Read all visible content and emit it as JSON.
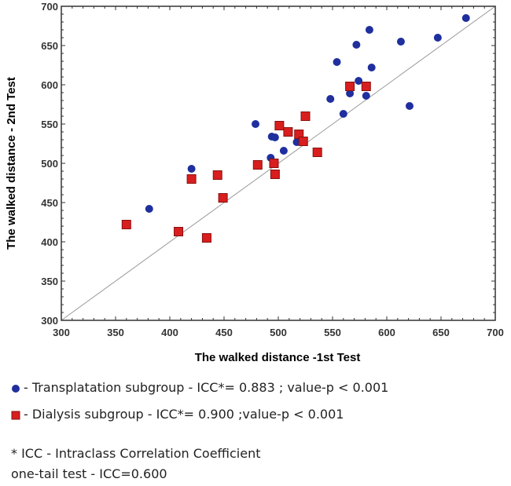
{
  "chart_data": {
    "type": "scatter",
    "xlabel": "The walked distance -1st Test",
    "ylabel": "The walked distance - 2nd Test",
    "xlim": [
      300,
      700
    ],
    "ylim": [
      300,
      700
    ],
    "xticks": [
      300,
      350,
      400,
      450,
      500,
      550,
      600,
      650,
      700
    ],
    "yticks": [
      300,
      350,
      400,
      450,
      500,
      550,
      600,
      650,
      700
    ],
    "reference_line": "y = x",
    "grid": false,
    "series": [
      {
        "name": "Transplatation subgroup",
        "marker": "circle",
        "color": "#1f2f9e",
        "points": [
          [
            673,
            685
          ],
          [
            584,
            670
          ],
          [
            572,
            651
          ],
          [
            613,
            655
          ],
          [
            647,
            660
          ],
          [
            554,
            629
          ],
          [
            586,
            622
          ],
          [
            574,
            605
          ],
          [
            566,
            589
          ],
          [
            548,
            582
          ],
          [
            581,
            586
          ],
          [
            621,
            573
          ],
          [
            560,
            563
          ],
          [
            479,
            550
          ],
          [
            494,
            534
          ],
          [
            497,
            533
          ],
          [
            517,
            527
          ],
          [
            505,
            516
          ],
          [
            493,
            507
          ],
          [
            420,
            493
          ],
          [
            381,
            442
          ]
        ]
      },
      {
        "name": "Dialysis subgroup",
        "marker": "square",
        "color": "#d81e1e",
        "points": [
          [
            501,
            548
          ],
          [
            525,
            560
          ],
          [
            509,
            540
          ],
          [
            519,
            537
          ],
          [
            523,
            528
          ],
          [
            536,
            514
          ],
          [
            566,
            598
          ],
          [
            581,
            598
          ],
          [
            481,
            498
          ],
          [
            496,
            500
          ],
          [
            497,
            486
          ],
          [
            444,
            485
          ],
          [
            420,
            480
          ],
          [
            449,
            456
          ],
          [
            360,
            422
          ],
          [
            408,
            413
          ],
          [
            434,
            405
          ]
        ]
      }
    ]
  },
  "legend": [
    {
      "text": "- Transplatation subgroup - ICC*= 0.883 ; value-p < 0.001"
    },
    {
      "text": "- Dialysis subgroup - ICC*= 0.900 ;value-p < 0.001"
    }
  ],
  "notes": {
    "line1": "* ICC - Intraclass Correlation Coefficient",
    "line2": "one-tail test - ICC=0.600"
  }
}
